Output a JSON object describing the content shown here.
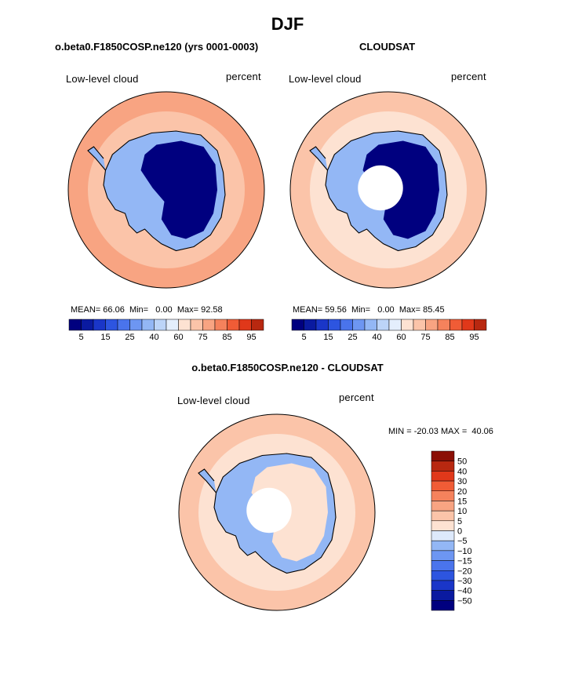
{
  "page_title": "DJF",
  "chart_data": [
    {
      "type": "heatmap",
      "projection": "south-polar-stereographic",
      "title": "o.beta0.F1850COSP.ne120 (yrs 0001-0003)",
      "left_label": "Low-level cloud",
      "right_label": "percent",
      "stats": {
        "mean_label": "MEAN=",
        "mean": "66.06",
        "min_label": "Min=",
        "min": "0.00",
        "max_label": "Max=",
        "max": "92.58"
      },
      "colorbar": {
        "levels": [
          5,
          10,
          15,
          20,
          25,
          30,
          40,
          50,
          60,
          65,
          75,
          80,
          85,
          90,
          95
        ],
        "tick_labels": [
          "5",
          "15",
          "25",
          "40",
          "60",
          "75",
          "85",
          "95"
        ],
        "colors": [
          "#00007f",
          "#0a1aa0",
          "#1a36c8",
          "#2d55e0",
          "#4a74ec",
          "#6d96f2",
          "#93b7f5",
          "#bcd4f8",
          "#e4eefc",
          "#fde2d2",
          "#fbc4a9",
          "#f8a482",
          "#f5825c",
          "#f05c36",
          "#e0381a",
          "#b82810"
        ]
      },
      "field": {
        "ocean_ring": 75,
        "inner_ocean": 70,
        "antarctic_plateau": 2,
        "coastal_ice": 35
      },
      "missing_data_hole": false
    },
    {
      "type": "heatmap",
      "projection": "south-polar-stereographic",
      "title": "CLOUDSAT",
      "left_label": "Low-level cloud",
      "right_label": "percent",
      "stats": {
        "mean_label": "MEAN=",
        "mean": "59.56",
        "min_label": "Min=",
        "min": "0.00",
        "max_label": "Max=",
        "max": "85.45"
      },
      "colorbar": {
        "levels": [
          5,
          10,
          15,
          20,
          25,
          30,
          40,
          50,
          60,
          65,
          75,
          80,
          85,
          90,
          95
        ],
        "tick_labels": [
          "5",
          "15",
          "25",
          "40",
          "60",
          "75",
          "85",
          "95"
        ],
        "colors": [
          "#00007f",
          "#0a1aa0",
          "#1a36c8",
          "#2d55e0",
          "#4a74ec",
          "#6d96f2",
          "#93b7f5",
          "#bcd4f8",
          "#e4eefc",
          "#fde2d2",
          "#fbc4a9",
          "#f8a482",
          "#f5825c",
          "#f05c36",
          "#e0381a",
          "#b82810"
        ]
      },
      "field": {
        "ocean_ring": 65,
        "inner_ocean": 60,
        "antarctic_plateau": 2,
        "coastal_ice": 30
      },
      "missing_data_hole": true
    },
    {
      "type": "heatmap",
      "projection": "south-polar-stereographic",
      "title": "o.beta0.F1850COSP.ne120 - CLOUDSAT",
      "left_label": "Low-level cloud",
      "right_label": "percent",
      "stats_text": "MIN = -20.03 MAX =  40.06",
      "colorbar": {
        "levels": [
          -50,
          -40,
          -30,
          -20,
          -15,
          -10,
          -5,
          0,
          5,
          10,
          15,
          20,
          30,
          40,
          50
        ],
        "tick_labels": [
          "50",
          "40",
          "30",
          "20",
          "15",
          "10",
          "5",
          "0",
          "−5",
          "−10",
          "−15",
          "−20",
          "−30",
          "−40",
          "−50"
        ],
        "colors": [
          "#00007f",
          "#0a1aa0",
          "#1a36c8",
          "#2d55e0",
          "#4a74ec",
          "#6d96f2",
          "#93b7f5",
          "#dde9fb",
          "#fde2d2",
          "#fbc4a9",
          "#f8a482",
          "#f5825c",
          "#f05c36",
          "#e0381a",
          "#b82810",
          "#8b0f05"
        ]
      },
      "field": {
        "ocean_ring": 7,
        "inner_ocean": 4,
        "antarctic_plateau": 3,
        "coastal_ice": -8
      },
      "missing_data_hole": true
    }
  ]
}
